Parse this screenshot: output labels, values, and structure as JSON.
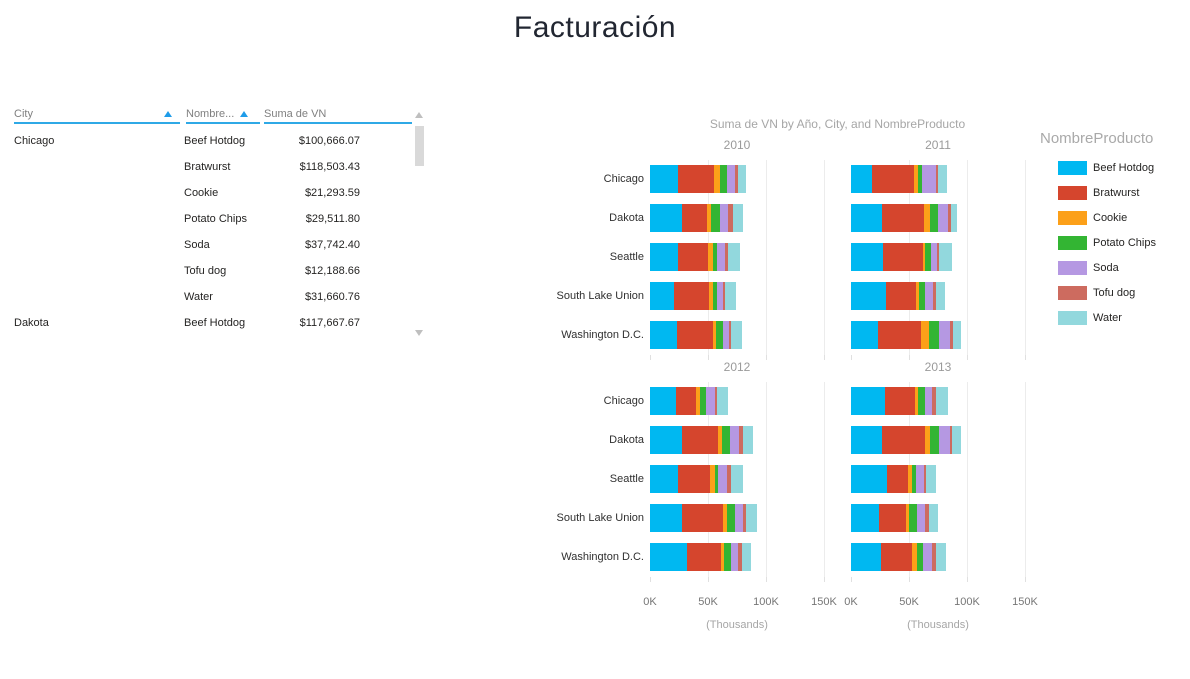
{
  "report": {
    "title": "Facturación"
  },
  "table": {
    "header": {
      "city_label": "City",
      "product_label": "Nombre...",
      "value_label": "Suma de VN"
    },
    "rows": [
      {
        "city": "Chicago",
        "product": "Beef Hotdog",
        "value": "$100,666.07"
      },
      {
        "city": "",
        "product": "Bratwurst",
        "value": "$118,503.43"
      },
      {
        "city": "",
        "product": "Cookie",
        "value": "$21,293.59"
      },
      {
        "city": "",
        "product": "Potato Chips",
        "value": "$29,511.80"
      },
      {
        "city": "",
        "product": "Soda",
        "value": "$37,742.40"
      },
      {
        "city": "",
        "product": "Tofu dog",
        "value": "$12,188.66"
      },
      {
        "city": "",
        "product": "Water",
        "value": "$31,660.76"
      },
      {
        "city": "Dakota",
        "product": "Beef Hotdog",
        "value": "$117,667.67"
      }
    ]
  },
  "chart_data": {
    "type": "bar",
    "variant": "horizontal-stacked-small-multiples",
    "title": "Suma de VN by Año, City, and NombreProducto",
    "legend_title": "NombreProducto",
    "legend_position": "right",
    "grid": true,
    "categories": [
      "Chicago",
      "Dakota",
      "Seattle",
      "South Lake Union",
      "Washington D.C."
    ],
    "products": [
      "Beef Hotdog",
      "Bratwurst",
      "Cookie",
      "Potato Chips",
      "Soda",
      "Tofu dog",
      "Water"
    ],
    "colors": {
      "Beef Hotdog": "#00B8F1",
      "Bratwurst": "#D5452D",
      "Cookie": "#FCA019",
      "Potato Chips": "#33B533",
      "Soda": "#B598E2",
      "Tofu dog": "#CD6B5F",
      "Water": "#92D8DD"
    },
    "x_ticks": [
      "0K",
      "50K",
      "100K",
      "150K"
    ],
    "x_unit_label": "(Thousands)",
    "xlim": [
      0,
      150
    ],
    "values_unit": "thousands (axis K units, estimated from bar lengths)",
    "panels": [
      {
        "year": "2010",
        "values": [
          [
            24,
            31,
            5,
            6,
            7,
            3,
            7
          ],
          [
            28,
            21,
            4,
            7,
            7,
            5,
            8
          ],
          [
            24,
            26,
            4,
            4,
            7,
            2,
            11
          ],
          [
            21,
            30,
            3,
            4,
            5,
            2,
            9
          ],
          [
            23,
            31,
            3,
            6,
            5,
            2,
            9
          ]
        ]
      },
      {
        "year": "2011",
        "values": [
          [
            18,
            36,
            4,
            3,
            12,
            2,
            8
          ],
          [
            27,
            36,
            5,
            7,
            9,
            2,
            5
          ],
          [
            28,
            34,
            2,
            5,
            5,
            2,
            11
          ],
          [
            30,
            26,
            3,
            5,
            7,
            2,
            8
          ],
          [
            23,
            37,
            7,
            9,
            9,
            3,
            7
          ]
        ]
      },
      {
        "year": "2012",
        "values": [
          [
            22,
            18,
            3,
            5,
            8,
            2,
            9
          ],
          [
            28,
            31,
            3,
            7,
            8,
            3,
            9
          ],
          [
            24,
            28,
            4,
            3,
            7,
            4,
            10
          ],
          [
            28,
            35,
            3,
            7,
            7,
            3,
            9
          ],
          [
            32,
            29,
            3,
            6,
            6,
            3,
            8
          ]
        ]
      },
      {
        "year": "2013",
        "values": [
          [
            29,
            26,
            3,
            6,
            6,
            3,
            11
          ],
          [
            27,
            37,
            4,
            8,
            9,
            2,
            8
          ],
          [
            31,
            18,
            4,
            3,
            7,
            2,
            8
          ],
          [
            24,
            23,
            3,
            7,
            7,
            3,
            8
          ],
          [
            26,
            27,
            4,
            5,
            8,
            3,
            9
          ]
        ]
      }
    ]
  }
}
